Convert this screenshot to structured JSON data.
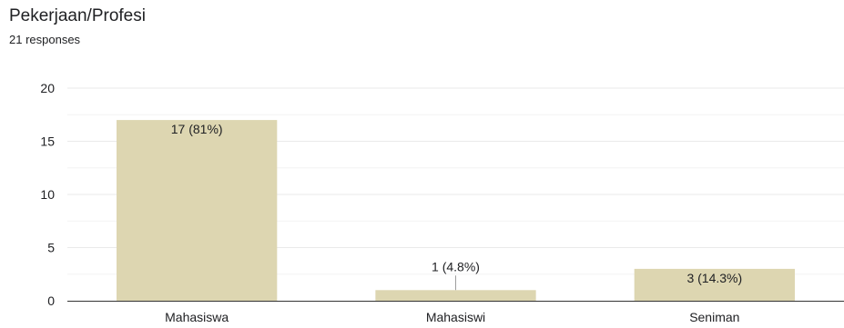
{
  "header": {
    "title": "Pekerjaan/Profesi",
    "subtitle": "21 responses"
  },
  "colors": {
    "bar": "#ddd6b1",
    "gridline": "#eaeaea",
    "minor_gridline": "#f4f4f4",
    "axis": "#333333",
    "text": "#202124"
  },
  "chart_data": {
    "type": "bar",
    "title": "Pekerjaan/Profesi",
    "categories": [
      "Mahasiswa",
      "Mahasiswi",
      "Seniman"
    ],
    "values": [
      17,
      1,
      3
    ],
    "labels": [
      "17 (81%)",
      "1 (4.8%)",
      "3 (14.3%)"
    ],
    "ylim": [
      0,
      20
    ],
    "yticks": [
      0,
      5,
      10,
      15,
      20
    ],
    "grid": true,
    "xlabel": "",
    "ylabel": ""
  }
}
